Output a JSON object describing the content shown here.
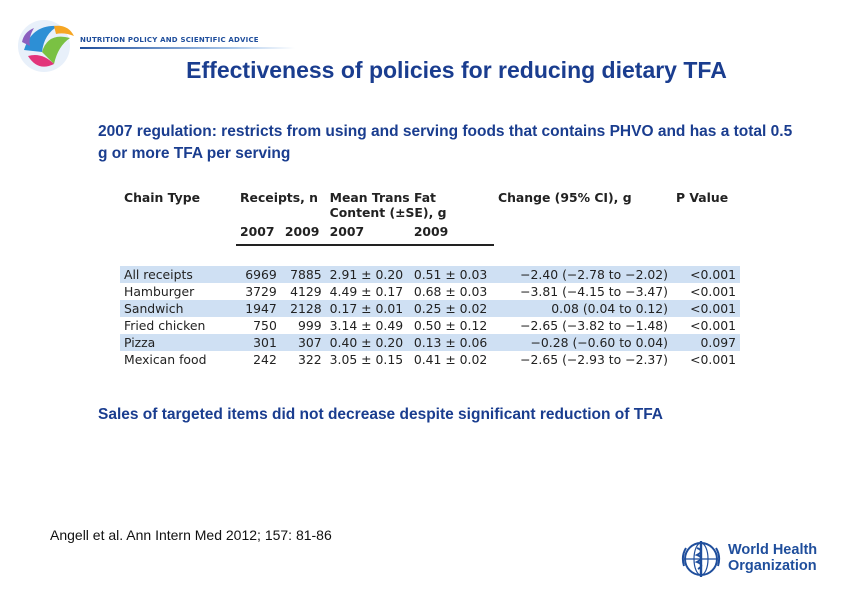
{
  "header": {
    "section_label": "NUTRITION POLICY AND SCIENTIFIC ADVICE"
  },
  "slide": {
    "title": "Effectiveness of policies for reducing dietary TFA",
    "intro": "2007 regulation: restricts from using and serving foods that contains PHVO and has a total 0.5 g or more TFA per serving",
    "conclusion": "Sales of targeted items did not decrease despite significant reduction of TFA",
    "citation": "Angell et al. Ann Intern Med 2012; 157: 81-86"
  },
  "table": {
    "headers": {
      "chain_type": "Chain Type",
      "receipts": "Receipts, n",
      "mean_trans_fat": "Mean Trans Fat Content (±SE), g",
      "change": "Change (95% CI), g",
      "p_value": "P Value"
    },
    "subheaders": {
      "receipts_2007": "2007",
      "receipts_2009": "2009",
      "mean_2007": "2007",
      "mean_2009": "2009"
    },
    "rows": [
      {
        "chain": "All receipts",
        "r2007": "6969",
        "r2009": "7885",
        "m2007": "2.91 ± 0.20",
        "m2009": "0.51 ± 0.03",
        "change": "−2.40 (−2.78 to −2.02)",
        "p": "<0.001"
      },
      {
        "chain": "Hamburger",
        "r2007": "3729",
        "r2009": "4129",
        "m2007": "4.49 ± 0.17",
        "m2009": "0.68 ± 0.03",
        "change": "−3.81 (−4.15 to −3.47)",
        "p": "<0.001"
      },
      {
        "chain": "Sandwich",
        "r2007": "1947",
        "r2009": "2128",
        "m2007": "0.17 ± 0.01",
        "m2009": "0.25 ± 0.02",
        "change": "0.08 (0.04 to 0.12)",
        "p": "<0.001"
      },
      {
        "chain": "Fried chicken",
        "r2007": "750",
        "r2009": "999",
        "m2007": "3.14 ± 0.49",
        "m2009": "0.50 ± 0.12",
        "change": "−2.65 (−3.82 to −1.48)",
        "p": "<0.001"
      },
      {
        "chain": "Pizza",
        "r2007": "301",
        "r2009": "307",
        "m2007": "0.40 ± 0.20",
        "m2009": "0.13 ± 0.06",
        "change": "−0.28 (−0.60 to 0.04)",
        "p": "0.097"
      },
      {
        "chain": "Mexican food",
        "r2007": "242",
        "r2009": "322",
        "m2007": "3.05 ± 0.15",
        "m2009": "0.41 ± 0.02",
        "change": "−2.65 (−2.93 to −2.37)",
        "p": "<0.001"
      }
    ]
  },
  "footer": {
    "org_line1": "World Health",
    "org_line2": "Organization"
  },
  "icons": {
    "header_logo": "nutrition-logo-icon",
    "org_emblem": "who-emblem-icon"
  },
  "colors": {
    "title_blue": "#1a3d8f",
    "row_shade": "#cfe0f3",
    "who_blue": "#1f4e9c"
  }
}
